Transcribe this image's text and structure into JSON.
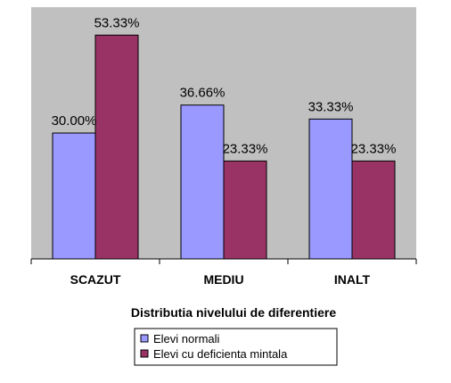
{
  "chart_data": {
    "type": "bar",
    "categories": [
      "SCAZUT",
      "MEDIU",
      "INALT"
    ],
    "series": [
      {
        "name": "Elevi normali",
        "values": [
          30.0,
          36.66,
          33.33
        ],
        "labels": [
          "30.00%",
          "36.66%",
          "33.33%"
        ],
        "color": "#9999ff"
      },
      {
        "name": "Elevi cu deficienta mintala",
        "values": [
          53.33,
          23.33,
          23.33
        ],
        "labels": [
          "53.33%",
          "23.33%",
          "23.33%"
        ],
        "color": "#993366"
      }
    ],
    "xlabel": "Distributia nivelului de diferentiere",
    "ylabel": "",
    "ylim": [
      0,
      60
    ],
    "grid": false,
    "plot_background": "#c0c0c0",
    "legend_position": "bottom"
  }
}
